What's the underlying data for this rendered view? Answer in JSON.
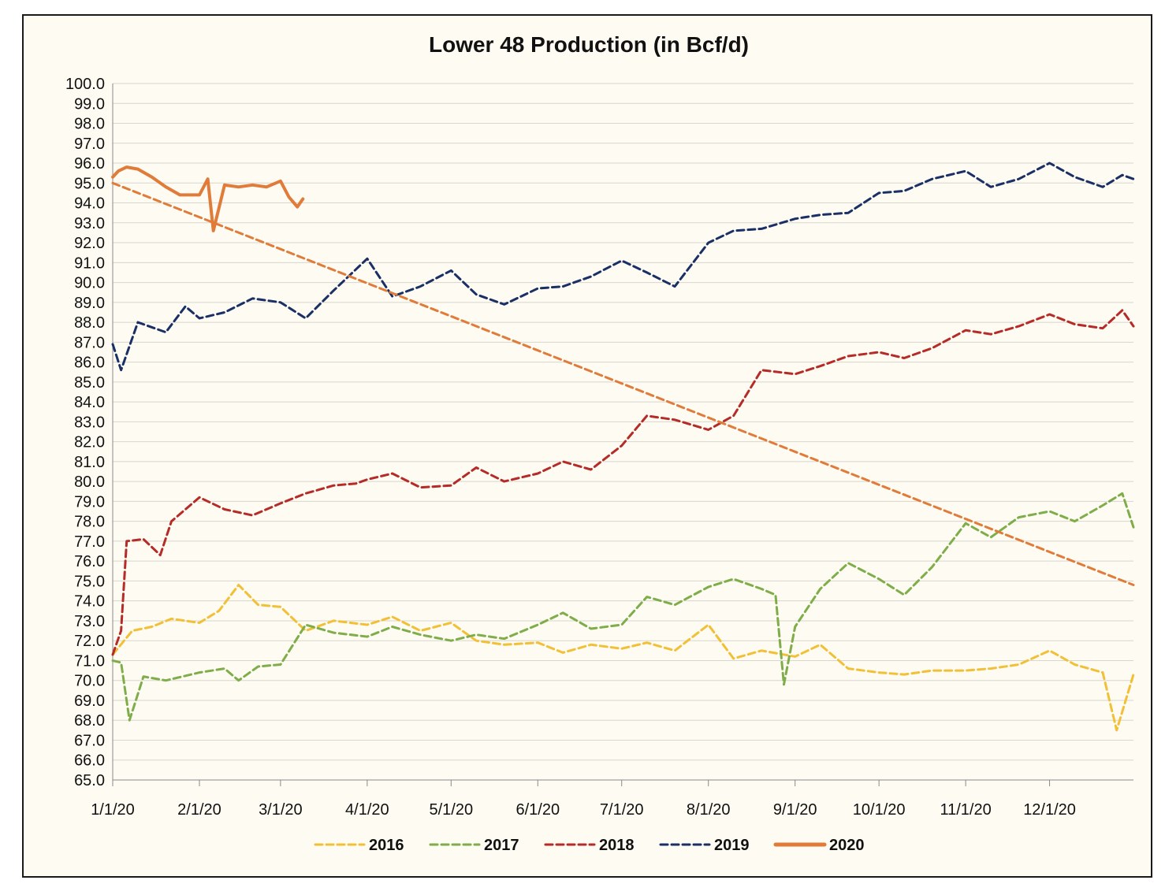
{
  "chart_data": {
    "type": "line",
    "title": "Lower 48 Production (in Bcf/d)",
    "xlabel": "",
    "ylabel": "",
    "ylim": [
      65.0,
      100.0
    ],
    "y_ticks": [
      "65.0",
      "66.0",
      "67.0",
      "68.0",
      "69.0",
      "70.0",
      "71.0",
      "72.0",
      "73.0",
      "74.0",
      "75.0",
      "76.0",
      "77.0",
      "78.0",
      "79.0",
      "80.0",
      "81.0",
      "82.0",
      "83.0",
      "84.0",
      "85.0",
      "86.0",
      "87.0",
      "88.0",
      "89.0",
      "90.0",
      "91.0",
      "92.0",
      "93.0",
      "94.0",
      "95.0",
      "96.0",
      "97.0",
      "98.0",
      "99.0",
      "100.0"
    ],
    "x_ticks": [
      "1/1/20",
      "2/1/20",
      "3/1/20",
      "4/1/20",
      "5/1/20",
      "6/1/20",
      "7/1/20",
      "8/1/20",
      "9/1/20",
      "10/1/20",
      "11/1/20",
      "12/1/20"
    ],
    "xlim": [
      "1/1/20",
      "12/31/20"
    ],
    "grid": "horizontal",
    "legend_position": "bottom",
    "series": [
      {
        "name": "2016",
        "color": "#f2c037",
        "style": "dashed",
        "x": [
          "1/1/20",
          "1/8/20",
          "1/15/20",
          "1/22/20",
          "2/1/20",
          "2/8/20",
          "2/15/20",
          "2/22/20",
          "3/1/20",
          "3/10/20",
          "3/20/20",
          "4/1/20",
          "4/10/20",
          "4/20/20",
          "5/1/20",
          "5/10/20",
          "5/20/20",
          "6/1/20",
          "6/10/20",
          "6/20/20",
          "7/1/20",
          "7/10/20",
          "7/20/20",
          "8/1/20",
          "8/10/20",
          "8/20/20",
          "9/1/20",
          "9/10/20",
          "9/20/20",
          "10/1/20",
          "10/10/20",
          "10/20/20",
          "11/1/20",
          "11/10/20",
          "11/20/20",
          "12/1/20",
          "12/10/20",
          "12/20/20",
          "12/25/20",
          "12/31/20"
        ],
        "values": [
          71.3,
          72.5,
          72.7,
          73.1,
          72.9,
          73.5,
          74.8,
          73.8,
          73.7,
          72.5,
          73.0,
          72.8,
          73.2,
          72.5,
          72.9,
          72.0,
          71.8,
          71.9,
          71.4,
          71.8,
          71.6,
          71.9,
          71.5,
          72.8,
          71.1,
          71.5,
          71.2,
          71.8,
          70.6,
          70.4,
          70.3,
          70.5,
          70.5,
          70.6,
          70.8,
          71.5,
          70.8,
          70.4,
          67.5,
          70.3
        ]
      },
      {
        "name": "2017",
        "color": "#7fad4a",
        "style": "dashed",
        "x": [
          "1/1/20",
          "1/4/20",
          "1/7/20",
          "1/12/20",
          "1/20/20",
          "2/1/20",
          "2/10/20",
          "2/15/20",
          "2/22/20",
          "3/1/20",
          "3/10/20",
          "3/20/20",
          "4/1/20",
          "4/10/20",
          "4/20/20",
          "5/1/20",
          "5/10/20",
          "5/20/20",
          "6/1/20",
          "6/10/20",
          "6/20/20",
          "7/1/20",
          "7/10/20",
          "7/20/20",
          "8/1/20",
          "8/10/20",
          "8/20/20",
          "8/25/20",
          "8/28/20",
          "9/1/20",
          "9/10/20",
          "9/20/20",
          "10/1/20",
          "10/10/20",
          "10/20/20",
          "11/1/20",
          "11/10/20",
          "11/20/20",
          "12/1/20",
          "12/10/20",
          "12/20/20",
          "12/27/20",
          "12/31/20"
        ],
        "values": [
          71.0,
          70.9,
          68.0,
          70.2,
          70.0,
          70.4,
          70.6,
          70.0,
          70.7,
          70.8,
          72.8,
          72.4,
          72.2,
          72.7,
          72.3,
          72.0,
          72.3,
          72.1,
          72.8,
          73.4,
          72.6,
          72.8,
          74.2,
          73.8,
          74.7,
          75.1,
          74.6,
          74.3,
          69.8,
          72.7,
          74.6,
          75.9,
          75.1,
          74.3,
          75.7,
          77.9,
          77.2,
          78.2,
          78.5,
          78.0,
          78.8,
          79.4,
          77.7
        ]
      },
      {
        "name": "2018",
        "color": "#b52b27",
        "style": "dashed",
        "x": [
          "1/1/20",
          "1/4/20",
          "1/6/20",
          "1/12/20",
          "1/18/20",
          "1/22/20",
          "2/1/20",
          "2/10/20",
          "2/20/20",
          "3/1/20",
          "3/10/20",
          "3/20/20",
          "3/28/20",
          "4/1/20",
          "4/10/20",
          "4/20/20",
          "5/1/20",
          "5/10/20",
          "5/20/20",
          "6/1/20",
          "6/10/20",
          "6/20/20",
          "7/1/20",
          "7/10/20",
          "7/20/20",
          "8/1/20",
          "8/10/20",
          "8/20/20",
          "9/1/20",
          "9/10/20",
          "9/20/20",
          "10/1/20",
          "10/10/20",
          "10/20/20",
          "11/1/20",
          "11/10/20",
          "11/20/20",
          "12/1/20",
          "12/10/20",
          "12/20/20",
          "12/27/20",
          "12/31/20"
        ],
        "values": [
          71.3,
          72.5,
          77.0,
          77.1,
          76.3,
          78.0,
          79.2,
          78.6,
          78.3,
          78.9,
          79.4,
          79.8,
          79.9,
          80.1,
          80.4,
          79.7,
          79.8,
          80.7,
          80.0,
          80.4,
          81.0,
          80.6,
          81.8,
          83.3,
          83.1,
          82.6,
          83.3,
          85.6,
          85.4,
          85.8,
          86.3,
          86.5,
          86.2,
          86.7,
          87.6,
          87.4,
          87.8,
          88.4,
          87.9,
          87.7,
          88.6,
          87.8
        ]
      },
      {
        "name": "2019",
        "color": "#1a2f66",
        "style": "dashed",
        "x": [
          "1/1/20",
          "1/4/20",
          "1/10/20",
          "1/20/20",
          "1/27/20",
          "2/1/20",
          "2/10/20",
          "2/20/20",
          "3/1/20",
          "3/10/20",
          "3/20/20",
          "4/1/20",
          "4/10/20",
          "4/20/20",
          "5/1/20",
          "5/10/20",
          "5/20/20",
          "6/1/20",
          "6/10/20",
          "6/20/20",
          "7/1/20",
          "7/10/20",
          "7/20/20",
          "8/1/20",
          "8/10/20",
          "8/20/20",
          "9/1/20",
          "9/10/20",
          "9/20/20",
          "10/1/20",
          "10/10/20",
          "10/20/20",
          "11/1/20",
          "11/10/20",
          "11/20/20",
          "12/1/20",
          "12/10/20",
          "12/20/20",
          "12/27/20",
          "12/31/20"
        ],
        "values": [
          86.9,
          85.6,
          88.0,
          87.5,
          88.8,
          88.2,
          88.5,
          89.2,
          89.0,
          88.2,
          89.6,
          91.2,
          89.3,
          89.8,
          90.6,
          89.4,
          88.9,
          89.7,
          89.8,
          90.3,
          91.1,
          90.5,
          89.8,
          92.0,
          92.6,
          92.7,
          93.2,
          93.4,
          93.5,
          94.5,
          94.6,
          95.2,
          95.6,
          94.8,
          95.2,
          96.0,
          95.3,
          94.8,
          95.4,
          95.2
        ]
      },
      {
        "name": "2020",
        "color": "#e07b39",
        "style": "solid",
        "x": [
          "1/1/20",
          "1/3/20",
          "1/6/20",
          "1/10/20",
          "1/15/20",
          "1/20/20",
          "1/25/20",
          "2/1/20",
          "2/4/20",
          "2/6/20",
          "2/10/20",
          "2/15/20",
          "2/20/20",
          "2/25/20",
          "3/1/20",
          "3/4/20",
          "3/7/20",
          "3/9/20"
        ],
        "values": [
          95.3,
          95.6,
          95.8,
          95.7,
          95.3,
          94.8,
          94.4,
          94.4,
          95.2,
          92.6,
          94.9,
          94.8,
          94.9,
          94.8,
          95.1,
          94.3,
          93.8,
          94.2
        ]
      },
      {
        "name": "",
        "color": "#e07b39",
        "style": "dashed",
        "x": [
          "1/1/20",
          "12/31/20"
        ],
        "values": [
          95.0,
          74.8
        ]
      }
    ],
    "legend": [
      "2016",
      "2017",
      "2018",
      "2019",
      "2020"
    ]
  }
}
